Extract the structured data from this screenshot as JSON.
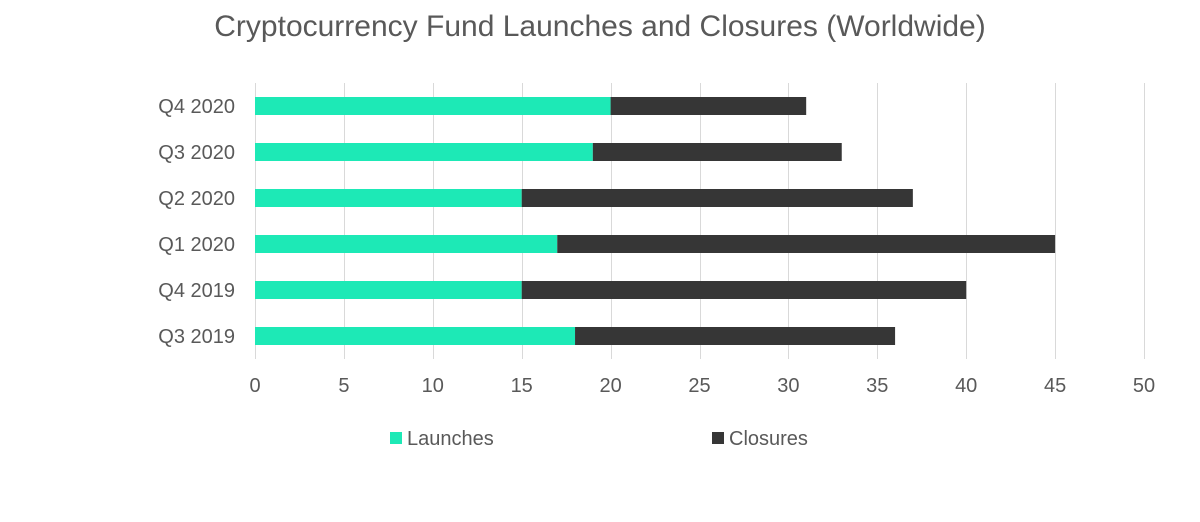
{
  "chart_data": {
    "type": "bar",
    "orientation": "horizontal",
    "stacked": true,
    "title": "Cryptocurrency Fund Launches and Closures (Worldwide)",
    "xlabel": "",
    "ylabel": "",
    "categories": [
      "Q4 2020",
      "Q3 2020",
      "Q2 2020",
      "Q1 2020",
      "Q4 2019",
      "Q3 2019"
    ],
    "series": [
      {
        "name": "Launches",
        "color": "#1de9b6",
        "values": [
          20,
          19,
          15,
          17,
          15,
          18
        ]
      },
      {
        "name": "Closures",
        "color": "#363636",
        "values": [
          11,
          14,
          22,
          28,
          25,
          18
        ]
      }
    ],
    "xlim": [
      0,
      50
    ],
    "xticks": [
      0,
      5,
      10,
      15,
      20,
      25,
      30,
      35,
      40,
      45,
      50
    ],
    "grid": "vertical",
    "legend_position": "bottom"
  }
}
